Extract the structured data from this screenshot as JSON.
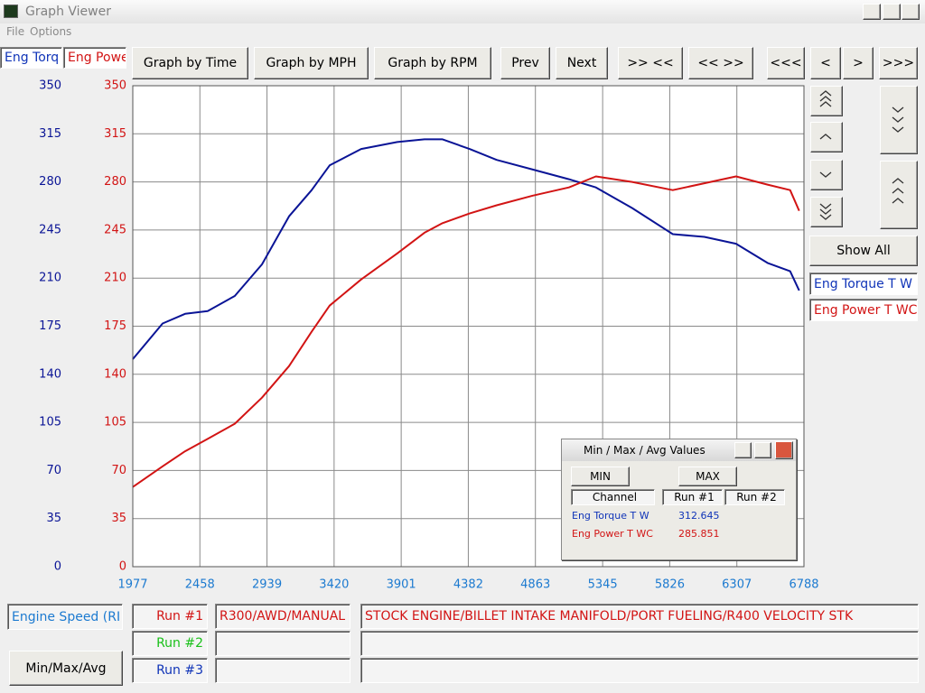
{
  "window": {
    "title": "Graph Viewer",
    "menu": [
      "File",
      "Options"
    ]
  },
  "toolbar": {
    "buttons": [
      "Graph by Time",
      "Graph by MPH",
      "Graph by RPM",
      "Prev",
      "Next",
      ">> <<",
      "<< >>",
      "<<<",
      "<",
      ">",
      ">>>"
    ]
  },
  "side_panel": {
    "show_all": "Show All"
  },
  "chart_data": {
    "type": "line",
    "ylabel": "Eng Torq",
    "y2label": "Eng Powe",
    "xlabel": "Engine Speed (RI",
    "x": [
      1977,
      2191,
      2352,
      2514,
      2708,
      2903,
      3097,
      3259,
      3388,
      3614,
      3873,
      4068,
      4197,
      4391,
      4585,
      4844,
      5103,
      5297,
      5556,
      5848,
      6074,
      6301,
      6527,
      6689,
      6754
    ],
    "series": [
      {
        "name": "Eng Torque T W",
        "color": "#0a1496",
        "values": [
          151,
          177,
          184,
          186,
          197,
          220,
          255,
          274,
          292,
          304,
          309,
          311,
          311,
          304,
          296,
          289,
          282,
          276,
          261,
          242,
          240,
          235,
          221,
          215,
          201
        ]
      },
      {
        "name": "Eng Power T WC",
        "color": "#d21414",
        "axis": "y2",
        "values": [
          58,
          73,
          84,
          93,
          104,
          123,
          146,
          171,
          190,
          209,
          228,
          243,
          250,
          257,
          263,
          270,
          276,
          284,
          280,
          274,
          279,
          284,
          278,
          274,
          259
        ]
      }
    ],
    "xlim": [
      1977,
      6788
    ],
    "xticks": [
      1977,
      2458,
      2939,
      3420,
      3901,
      4382,
      4863,
      5345,
      5826,
      6307,
      6788
    ],
    "ylim": [
      0,
      350
    ],
    "yticks": [
      0,
      35,
      70,
      105,
      140,
      175,
      210,
      245,
      280,
      315,
      350
    ],
    "y2lim": [
      0,
      350
    ],
    "y2ticks": [
      0,
      35,
      70,
      105,
      140,
      175,
      210,
      245,
      280,
      315,
      350
    ],
    "grid": true
  },
  "dialog": {
    "title": "Min / Max / Avg Values",
    "buttons": [
      "MIN",
      "MAX"
    ],
    "headers": [
      "Channel",
      "Run #1",
      "Run #2"
    ],
    "rows": [
      {
        "channel": "Eng Torque T W",
        "max": 312.645
      },
      {
        "channel": "Eng Power T WC",
        "max": 285.851
      }
    ]
  },
  "runs": [
    {
      "label": "Run #1",
      "vehicle": "R300/AWD/MANUAL",
      "description": "STOCK ENGINE/BILLET INTAKE MANIFOLD/PORT FUELING/R400 VELOCITY STK"
    },
    {
      "label": "Run #2"
    },
    {
      "label": "Run #3"
    }
  ],
  "footer": {
    "button": "Min/Max/Avg"
  }
}
